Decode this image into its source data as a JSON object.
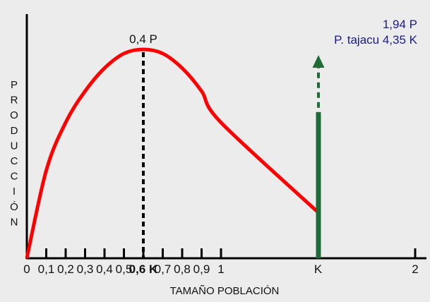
{
  "chart_data": {
    "type": "line",
    "xlabel": "TAMAÑO POBLACIÓN",
    "ylabel": "PRODUCCIÓN",
    "ylabel_letters": [
      "P",
      "R",
      "O",
      "D",
      "U",
      "C",
      "C",
      "I",
      "Ó",
      "N"
    ],
    "xlim": [
      0,
      2
    ],
    "ticks": [
      {
        "value": 0,
        "label": "0",
        "bold": false
      },
      {
        "value": 0.1,
        "label": "0,1",
        "bold": false
      },
      {
        "value": 0.2,
        "label": "0,2",
        "bold": false
      },
      {
        "value": 0.3,
        "label": "0,3",
        "bold": false
      },
      {
        "value": 0.4,
        "label": "0,4",
        "bold": false
      },
      {
        "value": 0.5,
        "label": "0,5",
        "bold": false
      },
      {
        "value": 0.6,
        "label": "0,6 K",
        "bold": true
      },
      {
        "value": 0.7,
        "label": "0,7",
        "bold": false
      },
      {
        "value": 0.8,
        "label": "0,8",
        "bold": false
      },
      {
        "value": 0.9,
        "label": "0,9",
        "bold": false
      },
      {
        "value": 1.0,
        "label": "1",
        "bold": false
      },
      {
        "value": 1.5,
        "label": "K",
        "bold": false
      },
      {
        "value": 2.0,
        "label": "2",
        "bold": false
      }
    ],
    "series": [
      {
        "color": "#ff0000",
        "points": [
          {
            "x": 0.0,
            "y": 0.0
          },
          {
            "x": 0.1,
            "y": 0.42
          },
          {
            "x": 0.2,
            "y": 0.65
          },
          {
            "x": 0.3,
            "y": 0.8
          },
          {
            "x": 0.4,
            "y": 0.91
          },
          {
            "x": 0.5,
            "y": 0.98
          },
          {
            "x": 0.6,
            "y": 1.0
          },
          {
            "x": 0.7,
            "y": 0.98
          },
          {
            "x": 0.8,
            "y": 0.91
          },
          {
            "x": 0.9,
            "y": 0.8
          },
          {
            "x": 1.0,
            "y": 0.65
          },
          {
            "x": 1.5,
            "y": 0.22
          }
        ]
      }
    ],
    "peak": {
      "x": 0.6,
      "label": "0,4 P"
    },
    "annotation": {
      "x": 1.5,
      "line1": "1,94 P",
      "line2": "P. tajacu 4,35 K",
      "text_color": "#1a1a8c",
      "bar_color": "#1e6b35",
      "bar_level": 0.7
    },
    "grid": false
  }
}
